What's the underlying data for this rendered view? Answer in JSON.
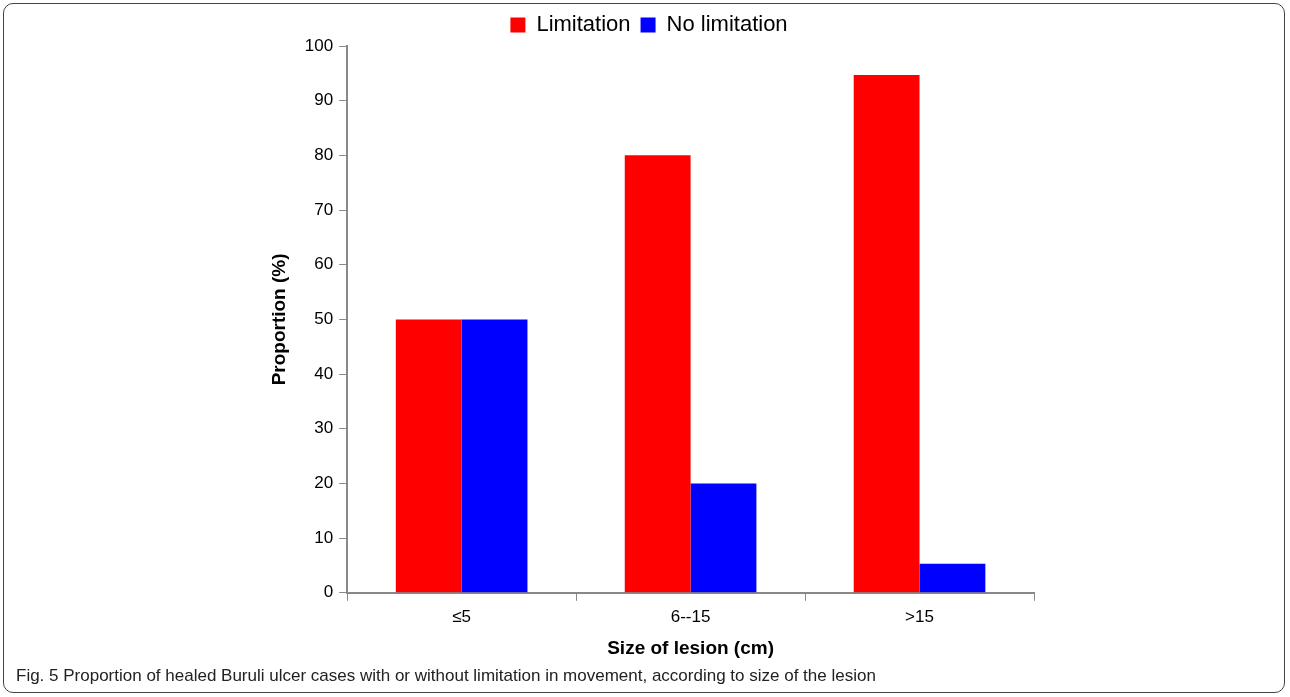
{
  "chart_data": {
    "type": "bar",
    "xlabel": "Size of lesion (cm)",
    "ylabel": "Proportion (%)",
    "categories": [
      "≤5",
      "6--15",
      ">15"
    ],
    "series": [
      {
        "name": "Limitation",
        "color": "#ff0000",
        "values": [
          50,
          80,
          94.7
        ]
      },
      {
        "name": "No limitation",
        "color": "#0000ff",
        "values": [
          50,
          20,
          5.3
        ]
      }
    ],
    "ylim": [
      0,
      100
    ],
    "yticks": [
      0,
      10,
      20,
      30,
      40,
      50,
      60,
      70,
      80,
      90,
      100
    ],
    "grid": false,
    "legend": "top",
    "annotations": [
      "Fig. 5 Proportion of healed Buruli ulcer cases with or without limitation in movement, according to size of the lesion"
    ]
  }
}
